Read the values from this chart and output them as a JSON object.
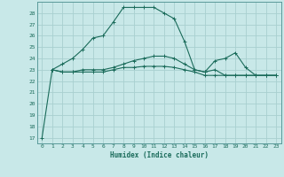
{
  "xlabel": "Humidex (Indice chaleur)",
  "background_color": "#c8e8e8",
  "line_color": "#1a6b5a",
  "grid_color": "#a8d0d0",
  "xlim": [
    -0.5,
    23.5
  ],
  "ylim": [
    16.5,
    29.0
  ],
  "yticks": [
    17,
    18,
    19,
    20,
    21,
    22,
    23,
    24,
    25,
    26,
    27,
    28
  ],
  "xticks": [
    0,
    1,
    2,
    3,
    4,
    5,
    6,
    7,
    8,
    9,
    10,
    11,
    12,
    13,
    14,
    15,
    16,
    17,
    18,
    19,
    20,
    21,
    22,
    23
  ],
  "series": [
    {
      "x": [
        0,
        1,
        2,
        3,
        4,
        5,
        6,
        7,
        8,
        9,
        10,
        11,
        12,
        13,
        14,
        15,
        16,
        17,
        18,
        19,
        20,
        21,
        22,
        23
      ],
      "y": [
        17.0,
        23.0,
        23.5,
        24.0,
        24.8,
        25.8,
        26.0,
        27.2,
        28.5,
        28.5,
        28.5,
        28.5,
        28.0,
        27.5,
        25.5,
        23.0,
        22.8,
        23.0,
        22.5,
        22.5,
        22.5,
        22.5,
        22.5,
        22.5
      ]
    },
    {
      "x": [
        1,
        2,
        3,
        4,
        5,
        6,
        7,
        8,
        9,
        10,
        11,
        12,
        13,
        14,
        15,
        16,
        17,
        18,
        19,
        20,
        21,
        22,
        23
      ],
      "y": [
        23.0,
        22.8,
        22.8,
        23.0,
        23.0,
        23.0,
        23.2,
        23.5,
        23.8,
        24.0,
        24.2,
        24.2,
        24.0,
        23.5,
        23.0,
        22.8,
        23.8,
        24.0,
        24.5,
        23.2,
        22.5,
        22.5,
        22.5
      ]
    },
    {
      "x": [
        1,
        2,
        3,
        4,
        5,
        6,
        7,
        8,
        9,
        10,
        11,
        12,
        13,
        14,
        15,
        16,
        17,
        18,
        19,
        20,
        21,
        22,
        23
      ],
      "y": [
        23.0,
        22.8,
        22.8,
        22.8,
        22.8,
        22.8,
        23.0,
        23.2,
        23.2,
        23.3,
        23.3,
        23.3,
        23.2,
        23.0,
        22.8,
        22.5,
        22.5,
        22.5,
        22.5,
        22.5,
        22.5,
        22.5,
        22.5
      ]
    }
  ]
}
